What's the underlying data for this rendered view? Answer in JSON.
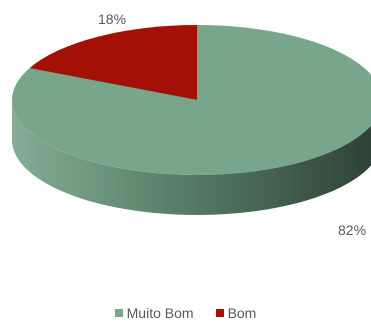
{
  "chart_data": {
    "type": "pie",
    "title": "",
    "series": [
      {
        "name": "Bom",
        "value": 18,
        "label": "18%",
        "color": "#A31106"
      },
      {
        "name": "Muito Bom",
        "value": 82,
        "label": "82%",
        "color": "#78A68A"
      }
    ],
    "legend_position": "bottom",
    "style": "3d"
  }
}
